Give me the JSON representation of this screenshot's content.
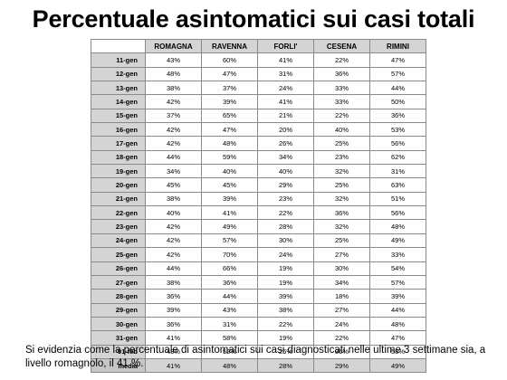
{
  "title": "Percentuale asintomatici sui casi totali",
  "table": {
    "headers": [
      "",
      "ROMAGNA",
      "RAVENNA",
      "FORLI'",
      "CESENA",
      "RIMINI"
    ],
    "rows": [
      [
        "11-gen",
        "43%",
        "60%",
        "41%",
        "22%",
        "47%"
      ],
      [
        "12-gen",
        "48%",
        "47%",
        "31%",
        "36%",
        "57%"
      ],
      [
        "13-gen",
        "38%",
        "37%",
        "24%",
        "33%",
        "44%"
      ],
      [
        "14-gen",
        "42%",
        "39%",
        "41%",
        "33%",
        "50%"
      ],
      [
        "15-gen",
        "37%",
        "65%",
        "21%",
        "22%",
        "36%"
      ],
      [
        "16-gen",
        "42%",
        "47%",
        "20%",
        "40%",
        "53%"
      ],
      [
        "17-gen",
        "42%",
        "48%",
        "26%",
        "25%",
        "56%"
      ],
      [
        "18-gen",
        "44%",
        "59%",
        "34%",
        "23%",
        "62%"
      ],
      [
        "19-gen",
        "34%",
        "40%",
        "40%",
        "32%",
        "31%"
      ],
      [
        "20-gen",
        "45%",
        "45%",
        "29%",
        "25%",
        "63%"
      ],
      [
        "21-gen",
        "38%",
        "39%",
        "23%",
        "32%",
        "51%"
      ],
      [
        "22-gen",
        "40%",
        "41%",
        "22%",
        "36%",
        "56%"
      ],
      [
        "23-gen",
        "42%",
        "49%",
        "28%",
        "32%",
        "48%"
      ],
      [
        "24-gen",
        "42%",
        "57%",
        "30%",
        "25%",
        "49%"
      ],
      [
        "25-gen",
        "42%",
        "70%",
        "24%",
        "27%",
        "33%"
      ],
      [
        "26-gen",
        "44%",
        "66%",
        "19%",
        "30%",
        "54%"
      ],
      [
        "27-gen",
        "38%",
        "36%",
        "19%",
        "34%",
        "57%"
      ],
      [
        "28-gen",
        "36%",
        "44%",
        "39%",
        "18%",
        "39%"
      ],
      [
        "29-gen",
        "39%",
        "43%",
        "38%",
        "27%",
        "44%"
      ],
      [
        "30-gen",
        "36%",
        "31%",
        "22%",
        "24%",
        "48%"
      ],
      [
        "31-gen",
        "41%",
        "58%",
        "19%",
        "22%",
        "47%"
      ],
      [
        "01-feb",
        "43%",
        "52%",
        "25%",
        "36%",
        "58%"
      ],
      [
        "media",
        "41%",
        "48%",
        "28%",
        "29%",
        "49%"
      ]
    ]
  },
  "note": "Si evidenzia come la percentuale di asintomatici sui casi diagnosticati nelle ultime 3 settimane sia, a livello romagnolo, il 41 %.",
  "chart_data": {
    "type": "table",
    "title": "Percentuale asintomatici sui casi totali",
    "columns": [
      "ROMAGNA",
      "RAVENNA",
      "FORLI'",
      "CESENA",
      "RIMINI"
    ],
    "x": [
      "11-gen",
      "12-gen",
      "13-gen",
      "14-gen",
      "15-gen",
      "16-gen",
      "17-gen",
      "18-gen",
      "19-gen",
      "20-gen",
      "21-gen",
      "22-gen",
      "23-gen",
      "24-gen",
      "25-gen",
      "26-gen",
      "27-gen",
      "28-gen",
      "29-gen",
      "30-gen",
      "31-gen",
      "01-feb"
    ],
    "series": [
      {
        "name": "ROMAGNA",
        "values": [
          43,
          48,
          38,
          42,
          37,
          42,
          42,
          44,
          34,
          45,
          38,
          40,
          42,
          42,
          42,
          44,
          38,
          36,
          39,
          36,
          41,
          43
        ]
      },
      {
        "name": "RAVENNA",
        "values": [
          60,
          47,
          37,
          39,
          65,
          47,
          48,
          59,
          40,
          45,
          39,
          41,
          49,
          57,
          70,
          66,
          36,
          44,
          43,
          31,
          58,
          52
        ]
      },
      {
        "name": "FORLI'",
        "values": [
          41,
          31,
          24,
          41,
          21,
          20,
          26,
          34,
          40,
          29,
          23,
          22,
          28,
          30,
          24,
          19,
          19,
          39,
          38,
          22,
          19,
          25
        ]
      },
      {
        "name": "CESENA",
        "values": [
          22,
          36,
          33,
          33,
          22,
          40,
          25,
          23,
          32,
          25,
          32,
          36,
          32,
          25,
          27,
          30,
          34,
          18,
          27,
          24,
          22,
          36
        ]
      },
      {
        "name": "RIMINI",
        "values": [
          47,
          57,
          44,
          50,
          36,
          53,
          56,
          62,
          31,
          63,
          51,
          56,
          48,
          49,
          33,
          54,
          57,
          39,
          44,
          48,
          47,
          58
        ]
      }
    ],
    "summary_row": {
      "label": "media",
      "values": [
        41,
        48,
        28,
        29,
        49
      ]
    },
    "unit": "%"
  }
}
